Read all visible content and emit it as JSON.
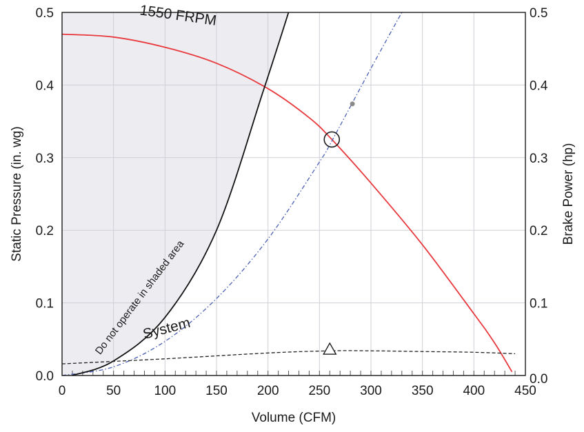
{
  "chart_data": {
    "type": "line",
    "xlabel": "Volume (CFM)",
    "ylabel": "Static Pressure (in. wg)",
    "y2label": "Brake Power (hp)",
    "xlim": [
      0,
      450
    ],
    "ylim": [
      0,
      0.5
    ],
    "y2lim": [
      0,
      0.5
    ],
    "x_ticks": [
      "0",
      "50",
      "100",
      "150",
      "200",
      "250",
      "300",
      "350",
      "400",
      "450"
    ],
    "y_ticks": [
      "0.0",
      "0.1",
      "0.2",
      "0.3",
      "0.4",
      "0.5"
    ],
    "y2_ticks": [
      "0.0",
      "0.1",
      "0.2",
      "0.3",
      "0.4",
      "0.5"
    ],
    "grid": true,
    "series": [
      {
        "name": "1550 FRPM",
        "color": "#e8383c",
        "style": "solid",
        "x": [
          0,
          50,
          100,
          150,
          200,
          240,
          262,
          300,
          350,
          400,
          420,
          437
        ],
        "y": [
          0.47,
          0.466,
          0.452,
          0.43,
          0.395,
          0.355,
          0.325,
          0.265,
          0.18,
          0.085,
          0.045,
          0.005
        ]
      },
      {
        "name": "System",
        "color": "#4a5fb5",
        "style": "dashdot",
        "x": [
          0,
          50,
          100,
          150,
          200,
          250,
          262,
          300,
          330
        ],
        "y": [
          0.0,
          0.012,
          0.047,
          0.106,
          0.188,
          0.294,
          0.323,
          0.423,
          0.5
        ]
      },
      {
        "name": "Do not operate in shaded area",
        "color": "#111111",
        "style": "solid",
        "x": [
          10,
          50,
          100,
          150,
          195,
          220
        ],
        "y": [
          0.0,
          0.02,
          0.08,
          0.2,
          0.39,
          0.5
        ]
      },
      {
        "name": "",
        "axis": "y2",
        "color": "#222222",
        "style": "dashed",
        "x": [
          0,
          100,
          200,
          260,
          300,
          350,
          400,
          440
        ],
        "y": [
          0.016,
          0.023,
          0.031,
          0.034,
          0.034,
          0.033,
          0.032,
          0.03
        ]
      }
    ],
    "markers": [
      {
        "kind": "operating-point-circle",
        "x": 262,
        "y": 0.325
      },
      {
        "kind": "power-point-triangle",
        "x": 260,
        "y": 0.036
      },
      {
        "kind": "small-dot",
        "x": 282,
        "y": 0.374
      }
    ],
    "annotations": {
      "fan_curve": "1550  FRPM",
      "system_curve": "System",
      "shaded_note": "Do not operate  in shaded   area"
    },
    "shaded_color": "#ececf1"
  }
}
